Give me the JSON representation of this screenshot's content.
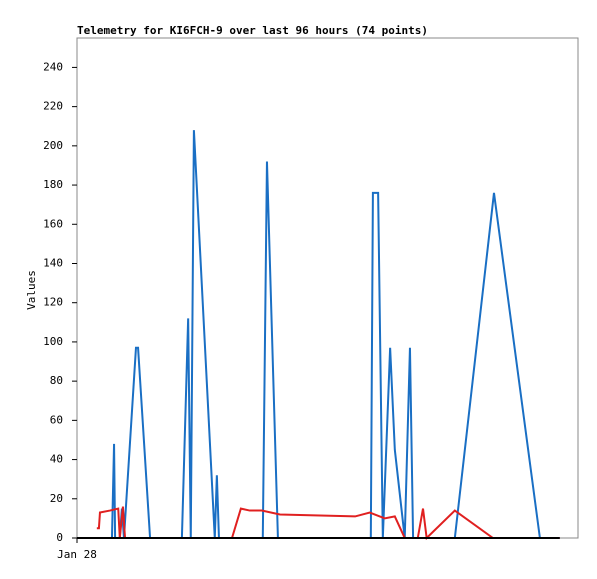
{
  "chart_data": {
    "type": "line",
    "title": "Telemetry for KI6FCH-9 over last 96 hours (74 points)",
    "y_label": "Values",
    "xlim": [
      0,
      96
    ],
    "xticks": [
      {
        "value": 0,
        "label": "Jan 28"
      }
    ],
    "ylim": [
      0,
      255
    ],
    "yticks": [
      0,
      20,
      40,
      60,
      80,
      100,
      120,
      140,
      160,
      180,
      200,
      220,
      240
    ],
    "series": [
      {
        "color": "#1a6fc4",
        "x": [
          6.7,
          7.1,
          7.3,
          8.2,
          8.6,
          9.0,
          11.3,
          11.7,
          14.0,
          20.1,
          21.3,
          21.8,
          22.4,
          26.4,
          26.8,
          27.2,
          35.6,
          36.4,
          38.5,
          56.3,
          56.7,
          57.7,
          58.6,
          60.0,
          60.9,
          62.8,
          63.8,
          64.4,
          72.4,
          79.9,
          88.7,
          92.5
        ],
        "values": [
          0,
          48,
          0,
          0,
          15,
          0,
          97,
          97,
          0,
          0,
          112,
          0,
          208,
          0,
          32,
          0,
          0,
          192,
          0,
          0,
          176,
          176,
          0,
          97,
          45,
          0,
          97,
          0,
          0,
          176,
          0,
          0
        ]
      },
      {
        "color": "#e02020",
        "x": [
          3.8,
          4.2,
          4.4,
          6.3,
          7.9,
          8.2,
          8.8,
          9.2,
          29.7,
          31.4,
          33.1,
          35.4,
          38.9,
          53.3,
          56.1,
          59.0,
          60.9,
          62.8,
          65.3,
          66.3,
          67.0,
          72.4,
          79.7,
          92.5
        ],
        "values": [
          5,
          5,
          13,
          14,
          15,
          0,
          16,
          0,
          0,
          15,
          14,
          14,
          12,
          11,
          13,
          10,
          11,
          0,
          0,
          15,
          0,
          14,
          0,
          0
        ]
      },
      {
        "color": "#000000",
        "x": [
          0,
          92.5
        ],
        "values": [
          0,
          0
        ]
      }
    ]
  }
}
